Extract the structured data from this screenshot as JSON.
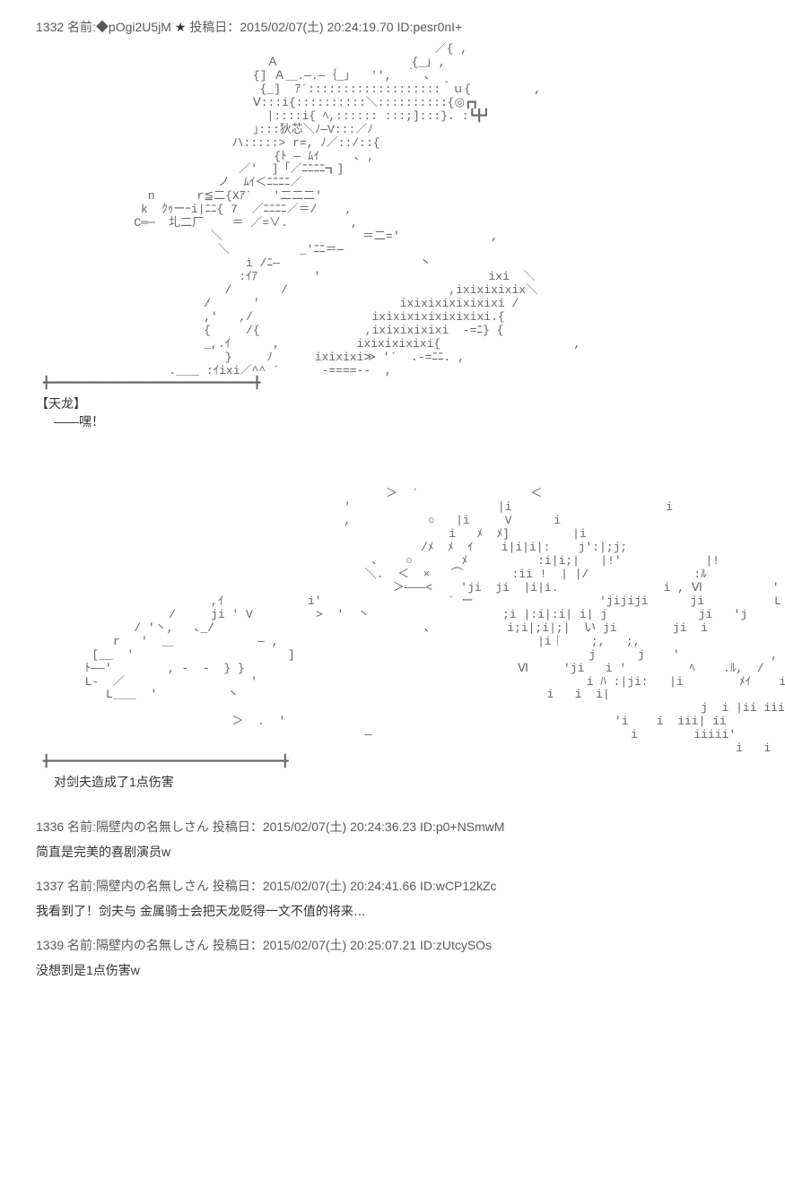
{
  "main_post": {
    "number": "1332",
    "name_label": "名前:",
    "trip": "◆pOgi2U5jM",
    "star": "★",
    "post_label": "投稿日：",
    "date": "2015/02/07(土) 20:24:19.70",
    "id_label": "ID:",
    "id": "pesr0nI+"
  },
  "ascii1": "                                                         ／{ ,\n                                 Ａ                   {_｣ ,\n                               {] Ａ＿.―.―｛_｣   '',  ｀ ､\n                                {_]  ｱ´:::::::::::::::::::＾ｕ{         ,\n                               Ⅴ:::i{::::::::::＼::::::::::{◎┏┓\n                                 |::::i{ ﾍ,:::::: :::;]:::}. :┗╋┛\n                               ｣:::狄芯＼ﾉ―V:::／ﾉ\n                            ハ:::::> r=, ﾉ／::/::{\n                                  {ﾄ ― ﾑｲ     ､ ,\n                             ／'  ]「／ﾆﾆﾆﾆ┓]\n                          ノ  ﾑｲ＜ﾆﾆﾆﾆ／\n                n      r≦二{Xｱ´   '二二二′\n               k  ｸｩーｰi|ﾆﾆ{ 7  ／ﾆﾆﾆﾆ／＝/    ,\n              C═─  圠二厂    ＝ ／=∨.         ,\n                         ＼                    ＝二=′             ,\n                          ＼          _'ﾆﾆ＝―\n                              i /ﾆ―                    丶\n                             :ｲｱ        '                        ixi  ＼\n                           /       /                       ,ixixixixix＼\n                        /      '                    ixixixixixixixi /\n                        ,′   ,/                 ixixixixixixixixi.{\n                        {     /{               ,ixixixixixi  -=ﾆ} {\n                        _,.ｲ      ,           ixixixixixi{                   ,\n                           }     ﾉ      ixixixi≫ '´  .-=ﾆﾆ. ,\n                   .＿＿ :ｲixi／^^ ´      -====--  ,\n ╋━━━━━━━━━━━━━━━━━━━━━━━━━━━━━╋",
  "speaker1": "【天龙】",
  "line1": "——嘿！",
  "ascii2": "                                                  ＞  ´                ＜\n                                            '                     |i                      i\n                                            ,           ○   |i     V      i\n                                                           i   ﾒ  ﾒ]         |i\n                                                       /ﾒ  ﾒ  ｲ    i|i|i|:    j':|;j;\n                                                ､    ○       ﾒ          :i|i;|   |!'            |!\n                                               ＼.  ＜  ×   ⌒       :ii !  | |/               :ﾙ                    ]i\n                                                   ＞―――<    'ji  ji  |i|i.               i , Ⅵ          '   ji\n                         ,ｲ            i'                  ` ー                  'jijiji      ji          L  ﾊ    {  ,  ' '' ji  i\n                   /     ji ' V         >  '  丶                   ;i |:i|:i| i| j             ji   'j       /             j'\n              / '丶,   ､_/                              ､           i;i|;i|;|  い ji        ji  i\n           r   '  ＿            ― ,                                     |i｜    ;,   ;,\n        [__  '                      ]                                          j      j    '             ,\n       ﾄ――'        , -  -  } }                                       Ⅵ     'ji   i '         ﾍ    .ﾙ,  /\n       L-  ／                  '                                               i ﾊ :|ji:   |i        ﾒｲ    i  i\n          L＿＿  '          丶                                            i   i  i|                          i i\n                                                                                               j  i |ii iii |                    'i ',\n                            ＞  .  '                                               'i    i  iii| ii                  '    i\n                                               ―                                     i        iiiii'                    i\n                                                                                                    i   i                  i\n ╋━━━━━━━━━━━━━━━━━━━━━━━━━━━━━━━━━╋",
  "damage_text": "对剑夫造成了1点伤害",
  "replies": [
    {
      "number": "1336",
      "name_label": "名前:",
      "name": "隔壁内の名無しさん",
      "post_label": "投稿日：",
      "date": "2015/02/07(土) 20:24:36.23",
      "id_label": "ID:",
      "id": "p0+NSmwM",
      "body": "简直是完美的喜剧演员w"
    },
    {
      "number": "1337",
      "name_label": "名前:",
      "name": "隔壁内の名無しさん",
      "post_label": "投稿日：",
      "date": "2015/02/07(土) 20:24:41.66",
      "id_label": "ID:",
      "id": "wCP12kZc",
      "body": "我看到了！剑夫与 金属骑士会把天龙贬得一文不值的将来…"
    },
    {
      "number": "1339",
      "name_label": "名前:",
      "name": "隔壁内の名無しさん",
      "post_label": "投稿日：",
      "date": "2015/02/07(土) 20:25:07.21",
      "id_label": "ID:",
      "id": "zUtcySOs",
      "body": "没想到是1点伤害w"
    }
  ]
}
